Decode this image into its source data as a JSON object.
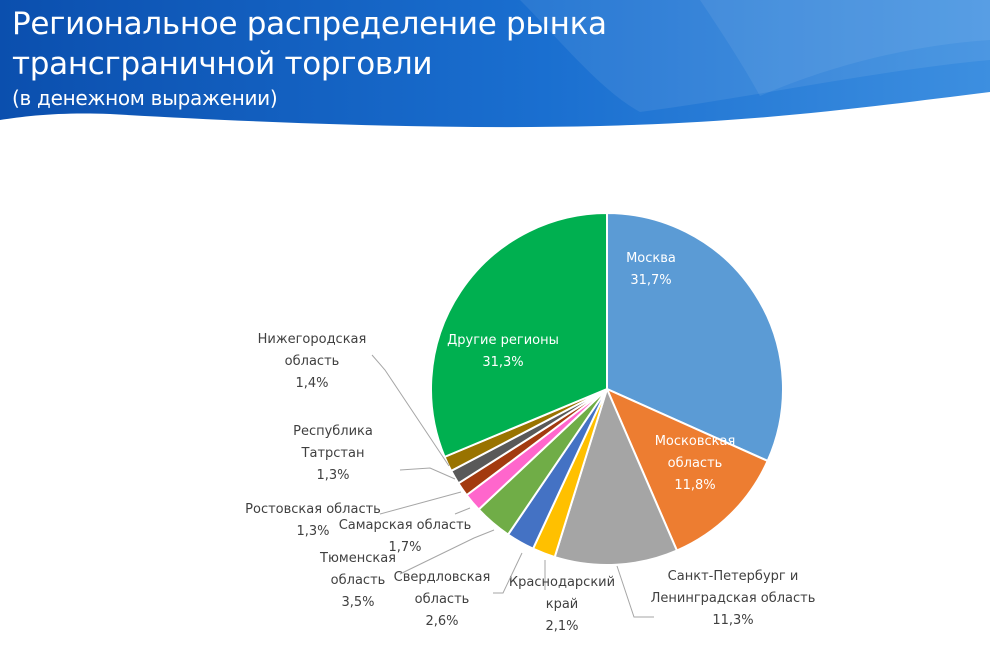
{
  "header": {
    "title_line_1": "Региональное распределение  рынка",
    "title_line_2": "трансграничной торговли",
    "subtitle": "(в денежном выражении)",
    "colors": {
      "dark": "#0b4fae",
      "mid": "#1a6fd0",
      "light": "#3d8fe0"
    }
  },
  "chart_data": {
    "type": "pie",
    "title": "Региональное распределение рынка трансграничной торговли",
    "subtitle": "(в денежном выражении)",
    "start_angle_deg": 0,
    "direction": "clockwise",
    "slices": [
      {
        "name": "Москва",
        "value": 31.7,
        "value_label": "31,7%",
        "label_lines": [
          "Москва"
        ],
        "color": "#5b9bd5",
        "label_inside": true,
        "label_color": "#ffffff"
      },
      {
        "name": "Московская область",
        "value": 11.8,
        "value_label": "11,8%",
        "label_lines": [
          "Московская",
          "область"
        ],
        "color": "#ed7d31",
        "label_inside": true,
        "label_color": "#ffffff"
      },
      {
        "name": "Санкт-Петербург и Ленинградская область",
        "value": 11.3,
        "value_label": "11,3%",
        "label_lines": [
          "Санкт-Петербург и",
          "Ленинградская область"
        ],
        "color": "#a5a5a5",
        "label_inside": false,
        "label_color": "#404040"
      },
      {
        "name": "Краснодарский край",
        "value": 2.1,
        "value_label": "2,1%",
        "label_lines": [
          "Краснодарский",
          "край"
        ],
        "color": "#ffc000",
        "label_inside": false,
        "label_color": "#404040"
      },
      {
        "name": "Свердловская область",
        "value": 2.6,
        "value_label": "2,6%",
        "label_lines": [
          "Свердловская",
          "область"
        ],
        "color": "#4472c4",
        "label_inside": false,
        "label_color": "#404040"
      },
      {
        "name": "Тюменская область",
        "value": 3.5,
        "value_label": "3,5%",
        "label_lines": [
          "Тюменская",
          "область"
        ],
        "color": "#70ad47",
        "label_inside": false,
        "label_color": "#404040"
      },
      {
        "name": "Самарская область",
        "value": 1.7,
        "value_label": "1,7%",
        "label_lines": [
          "Самарская область"
        ],
        "color": "#ff66cc",
        "label_inside": false,
        "label_color": "#404040"
      },
      {
        "name": "Ростовская область",
        "value": 1.3,
        "value_label": "1,3%",
        "label_lines": [
          "Ростовская область"
        ],
        "color": "#a33a0f",
        "label_inside": false,
        "label_color": "#404040"
      },
      {
        "name": "Республика Татрстан",
        "value": 1.3,
        "value_label": "1,3%",
        "label_lines": [
          "Республика",
          "Татрстан"
        ],
        "color": "#595959",
        "label_inside": false,
        "label_color": "#404040"
      },
      {
        "name": "Нижегородская область",
        "value": 1.4,
        "value_label": "1,4%",
        "label_lines": [
          "Нижегородская",
          "область"
        ],
        "color": "#997300",
        "label_inside": false,
        "label_color": "#404040"
      },
      {
        "name": "Другие регионы",
        "value": 31.3,
        "value_label": "31,3%",
        "label_lines": [
          "Другие регионы"
        ],
        "color": "#00b050",
        "label_inside": true,
        "label_color": "#ffffff"
      }
    ]
  }
}
